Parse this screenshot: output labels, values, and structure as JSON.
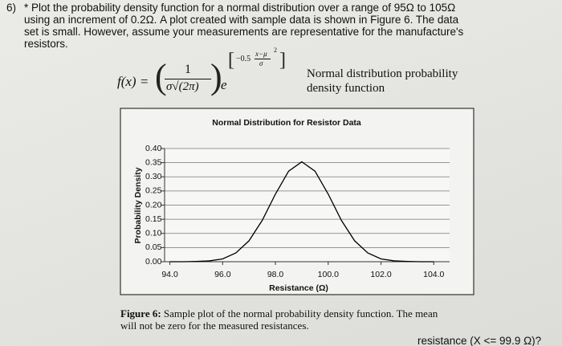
{
  "question": {
    "number": "6)",
    "lines": [
      "* Plot the probability density function for a normal distribution over a range of 95Ω to 105Ω",
      "using an increment of 0.2Ω.  A plot created with sample data is shown in Figure 6.  The data",
      "set is small.  However, assume your measurements are representative for the manufacture's",
      "resistors."
    ]
  },
  "formula": {
    "lhs": "f(x) =",
    "numerator": "1",
    "denominator": "σ√(2π)",
    "base": "e",
    "exponent_coef": "−0.5",
    "exponent_num": "x−μ",
    "exponent_den": "σ",
    "exponent_power": "2",
    "description": [
      "Normal distribution probability",
      "density function"
    ]
  },
  "chart_data": {
    "type": "line",
    "title": "Normal Distribution for Resistor Data",
    "x_label": "Resistance (Ω)",
    "y_label": "Probability Density",
    "x": [
      94,
      94.5,
      95,
      95.5,
      96,
      96.5,
      97,
      97.5,
      98,
      98.5,
      99,
      99.5,
      100,
      100.5,
      101,
      101.5,
      102,
      102.5,
      103,
      103.5,
      104
    ],
    "series": [
      {
        "name": "Probability Density",
        "color": "#000000",
        "values": [
          0,
          0,
          0.001,
          0.003,
          0.01,
          0.031,
          0.074,
          0.146,
          0.239,
          0.32,
          0.353,
          0.32,
          0.239,
          0.146,
          0.074,
          0.031,
          0.01,
          0.003,
          0.001,
          0,
          0
        ]
      }
    ],
    "xlim": [
      93.8,
      104.6
    ],
    "ylim": [
      0,
      0.4
    ],
    "xticks": [
      {
        "value": 94,
        "label": "94.0"
      },
      {
        "value": 96,
        "label": "96.0"
      },
      {
        "value": 98,
        "label": "98.0"
      },
      {
        "value": 100,
        "label": "100.0"
      },
      {
        "value": 102,
        "label": "102.0"
      },
      {
        "value": 104,
        "label": "104.0"
      }
    ],
    "yticks": [
      {
        "value": 0,
        "label": "0.00"
      },
      0.05,
      {
        "value": 0.1,
        "label": "0.10"
      },
      0.15,
      {
        "value": 0.2,
        "label": "0.20"
      },
      0.25,
      {
        "value": 0.3,
        "label": "0.30"
      },
      0.35,
      {
        "value": 0.4,
        "label": "0.40"
      }
    ],
    "grid": true
  },
  "caption": {
    "label": "Figure 6:",
    "lines": [
      " Sample plot of the normal probability density function.  The mean",
      "will not be zero for the measured resistances."
    ]
  },
  "footer_fragment": "resistance (X <= 99.9 Ω)?"
}
